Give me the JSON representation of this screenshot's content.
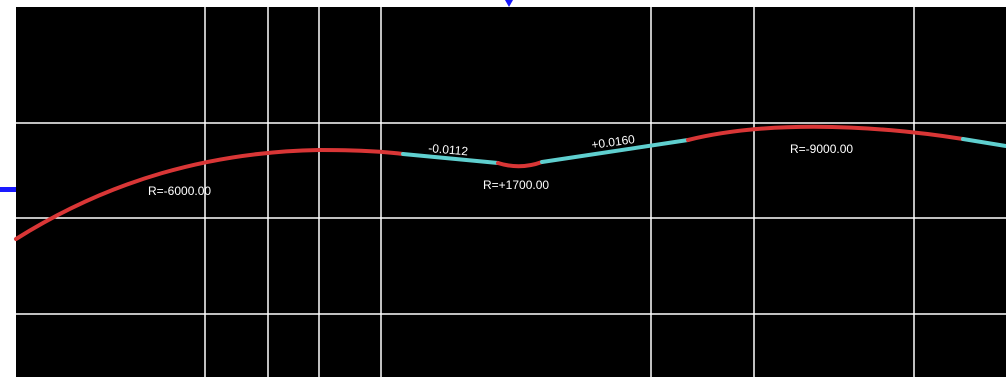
{
  "profile_view": {
    "background_color": "#000000",
    "grid_color": "#ffffff",
    "curve_color": "#d93636",
    "tangent_color": "#5fcfcf",
    "marker_color": "#1a1aff",
    "labels": {
      "curve_1_radius": "R=-6000.00",
      "grade_1": "-0.0112",
      "curve_2_radius": "R=+1700.00",
      "grade_2": "+0.0160",
      "curve_3_radius": "R=-9000.00"
    }
  }
}
